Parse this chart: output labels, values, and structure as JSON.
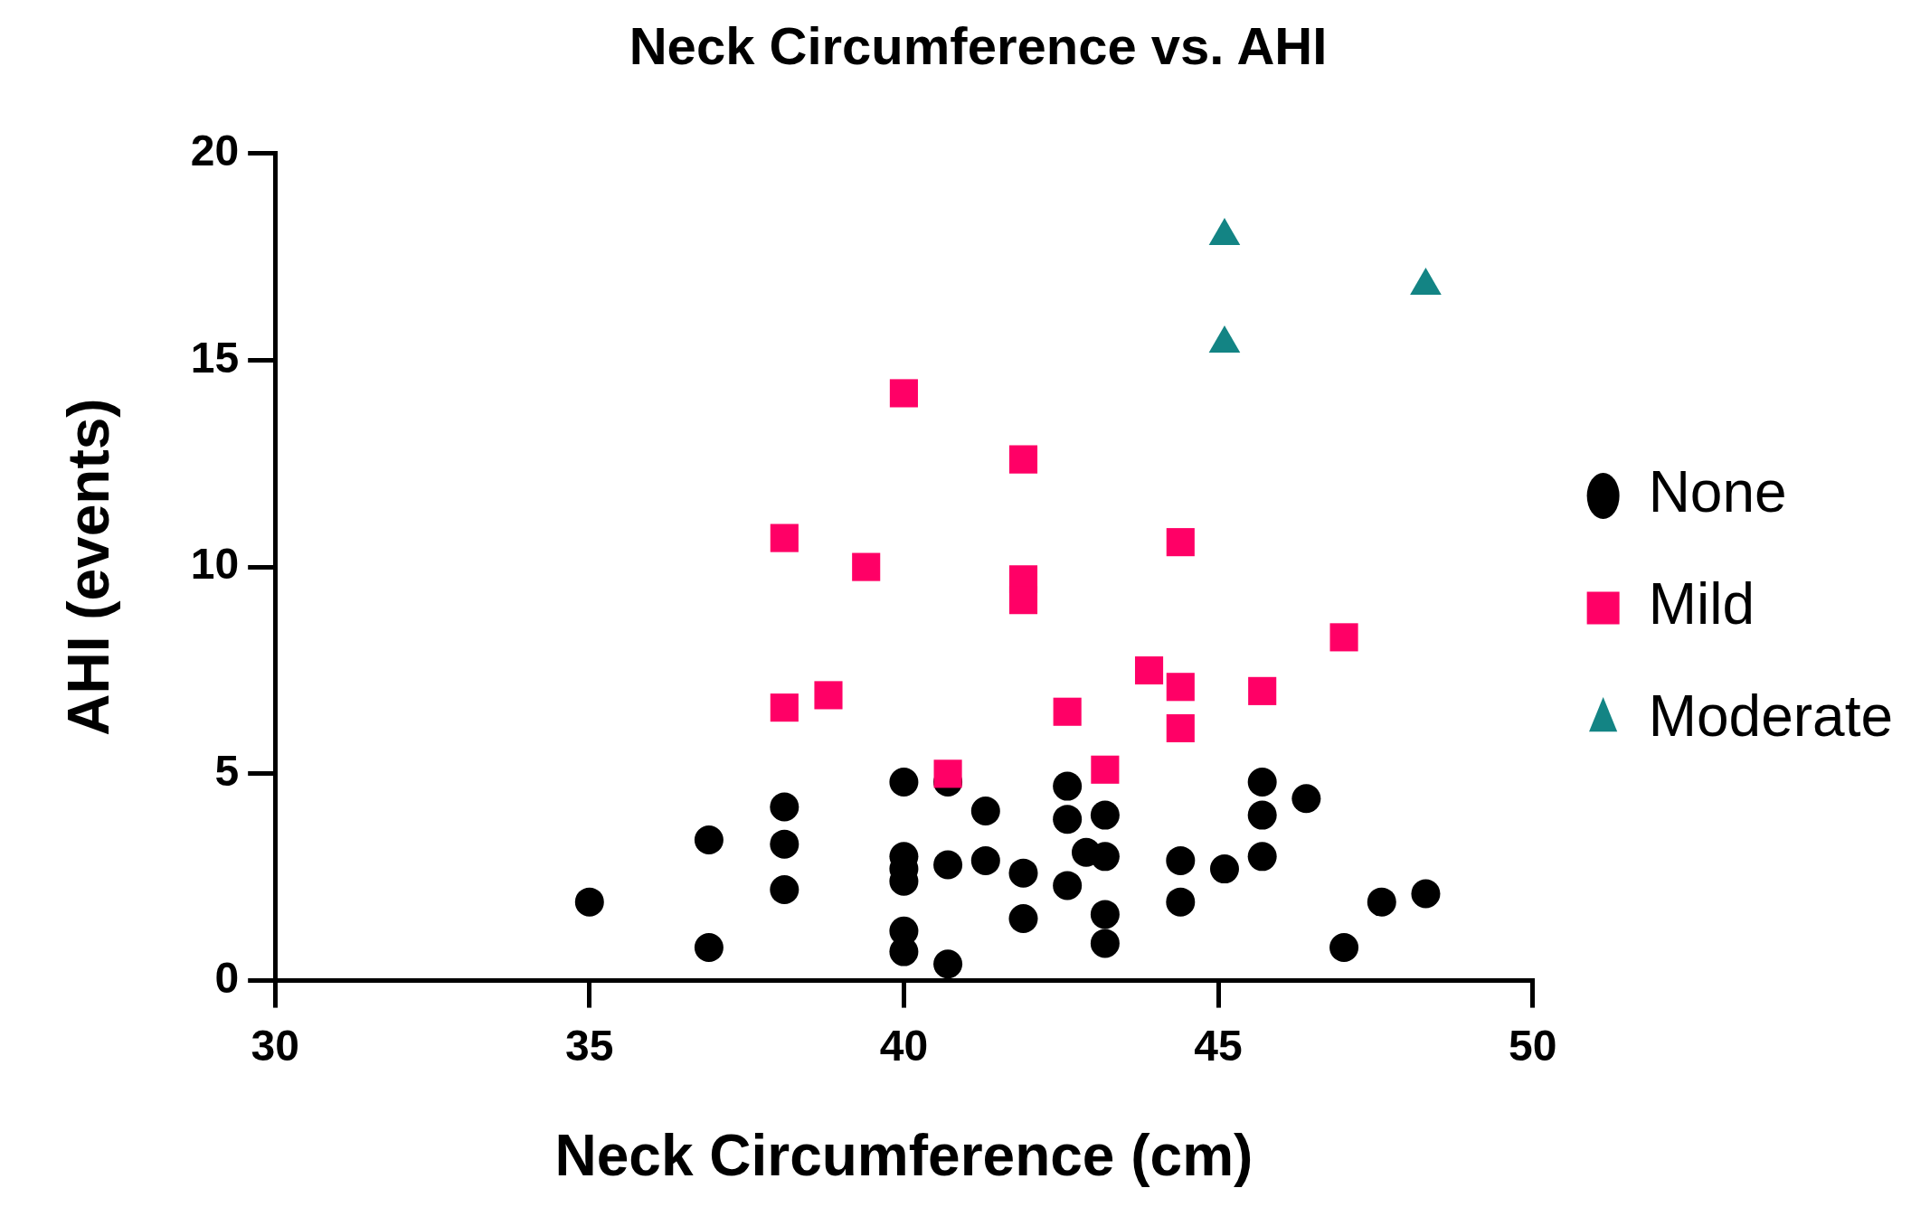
{
  "chart_data": {
    "type": "scatter",
    "title": "Neck Circumference vs. AHI",
    "xlabel": "Neck Circumference (cm)",
    "ylabel": "AHI (events)",
    "xlim": [
      30,
      50
    ],
    "xticks": [
      30,
      35,
      40,
      45,
      50
    ],
    "ylim": [
      0,
      20
    ],
    "yticks": [
      0,
      5,
      10,
      15,
      20
    ],
    "grid": false,
    "legend": "right",
    "series": [
      {
        "name": "None",
        "color": "#000000",
        "marker": "circle",
        "x": [
          35,
          36.9,
          36.9,
          38.1,
          38.1,
          38.1,
          40,
          40,
          40,
          40,
          40,
          40,
          40.7,
          40.7,
          40.7,
          41.3,
          41.3,
          41.9,
          41.9,
          42.6,
          42.6,
          42.6,
          42.9,
          43.2,
          43.2,
          43.2,
          43.2,
          44.4,
          44.4,
          45.1,
          45.7,
          45.7,
          45.7,
          46.4,
          47,
          47.6,
          48.3
        ],
        "values": [
          1.9,
          3.4,
          0.8,
          4.2,
          3.3,
          2.2,
          4.8,
          3,
          2.7,
          2.4,
          1.2,
          0.7,
          4.8,
          2.8,
          0.4,
          4.1,
          2.9,
          2.6,
          1.5,
          4.7,
          3.9,
          2.3,
          3.1,
          4,
          3,
          1.6,
          0.9,
          2.9,
          1.9,
          2.7,
          4.8,
          4,
          3,
          4.4,
          0.8,
          1.9,
          2.1
        ]
      },
      {
        "name": "Mild",
        "color": "#ff0066",
        "marker": "square",
        "x": [
          38.1,
          38.8,
          38.1,
          39.4,
          40,
          40.7,
          41.9,
          41.9,
          41.9,
          42.6,
          43.2,
          43.9,
          44.4,
          44.4,
          44.4,
          45.7,
          47
        ],
        "values": [
          10.7,
          6.9,
          6.6,
          10,
          14.2,
          5,
          12.6,
          9.7,
          9.2,
          6.5,
          5.1,
          7.5,
          7.1,
          6.1,
          10.6,
          7,
          8.3
        ]
      },
      {
        "name": "Moderate",
        "color": "#138484",
        "marker": "triangle",
        "x": [
          45.1,
          45.1,
          48.3
        ],
        "values": [
          18,
          15.4,
          16.8
        ]
      }
    ]
  }
}
